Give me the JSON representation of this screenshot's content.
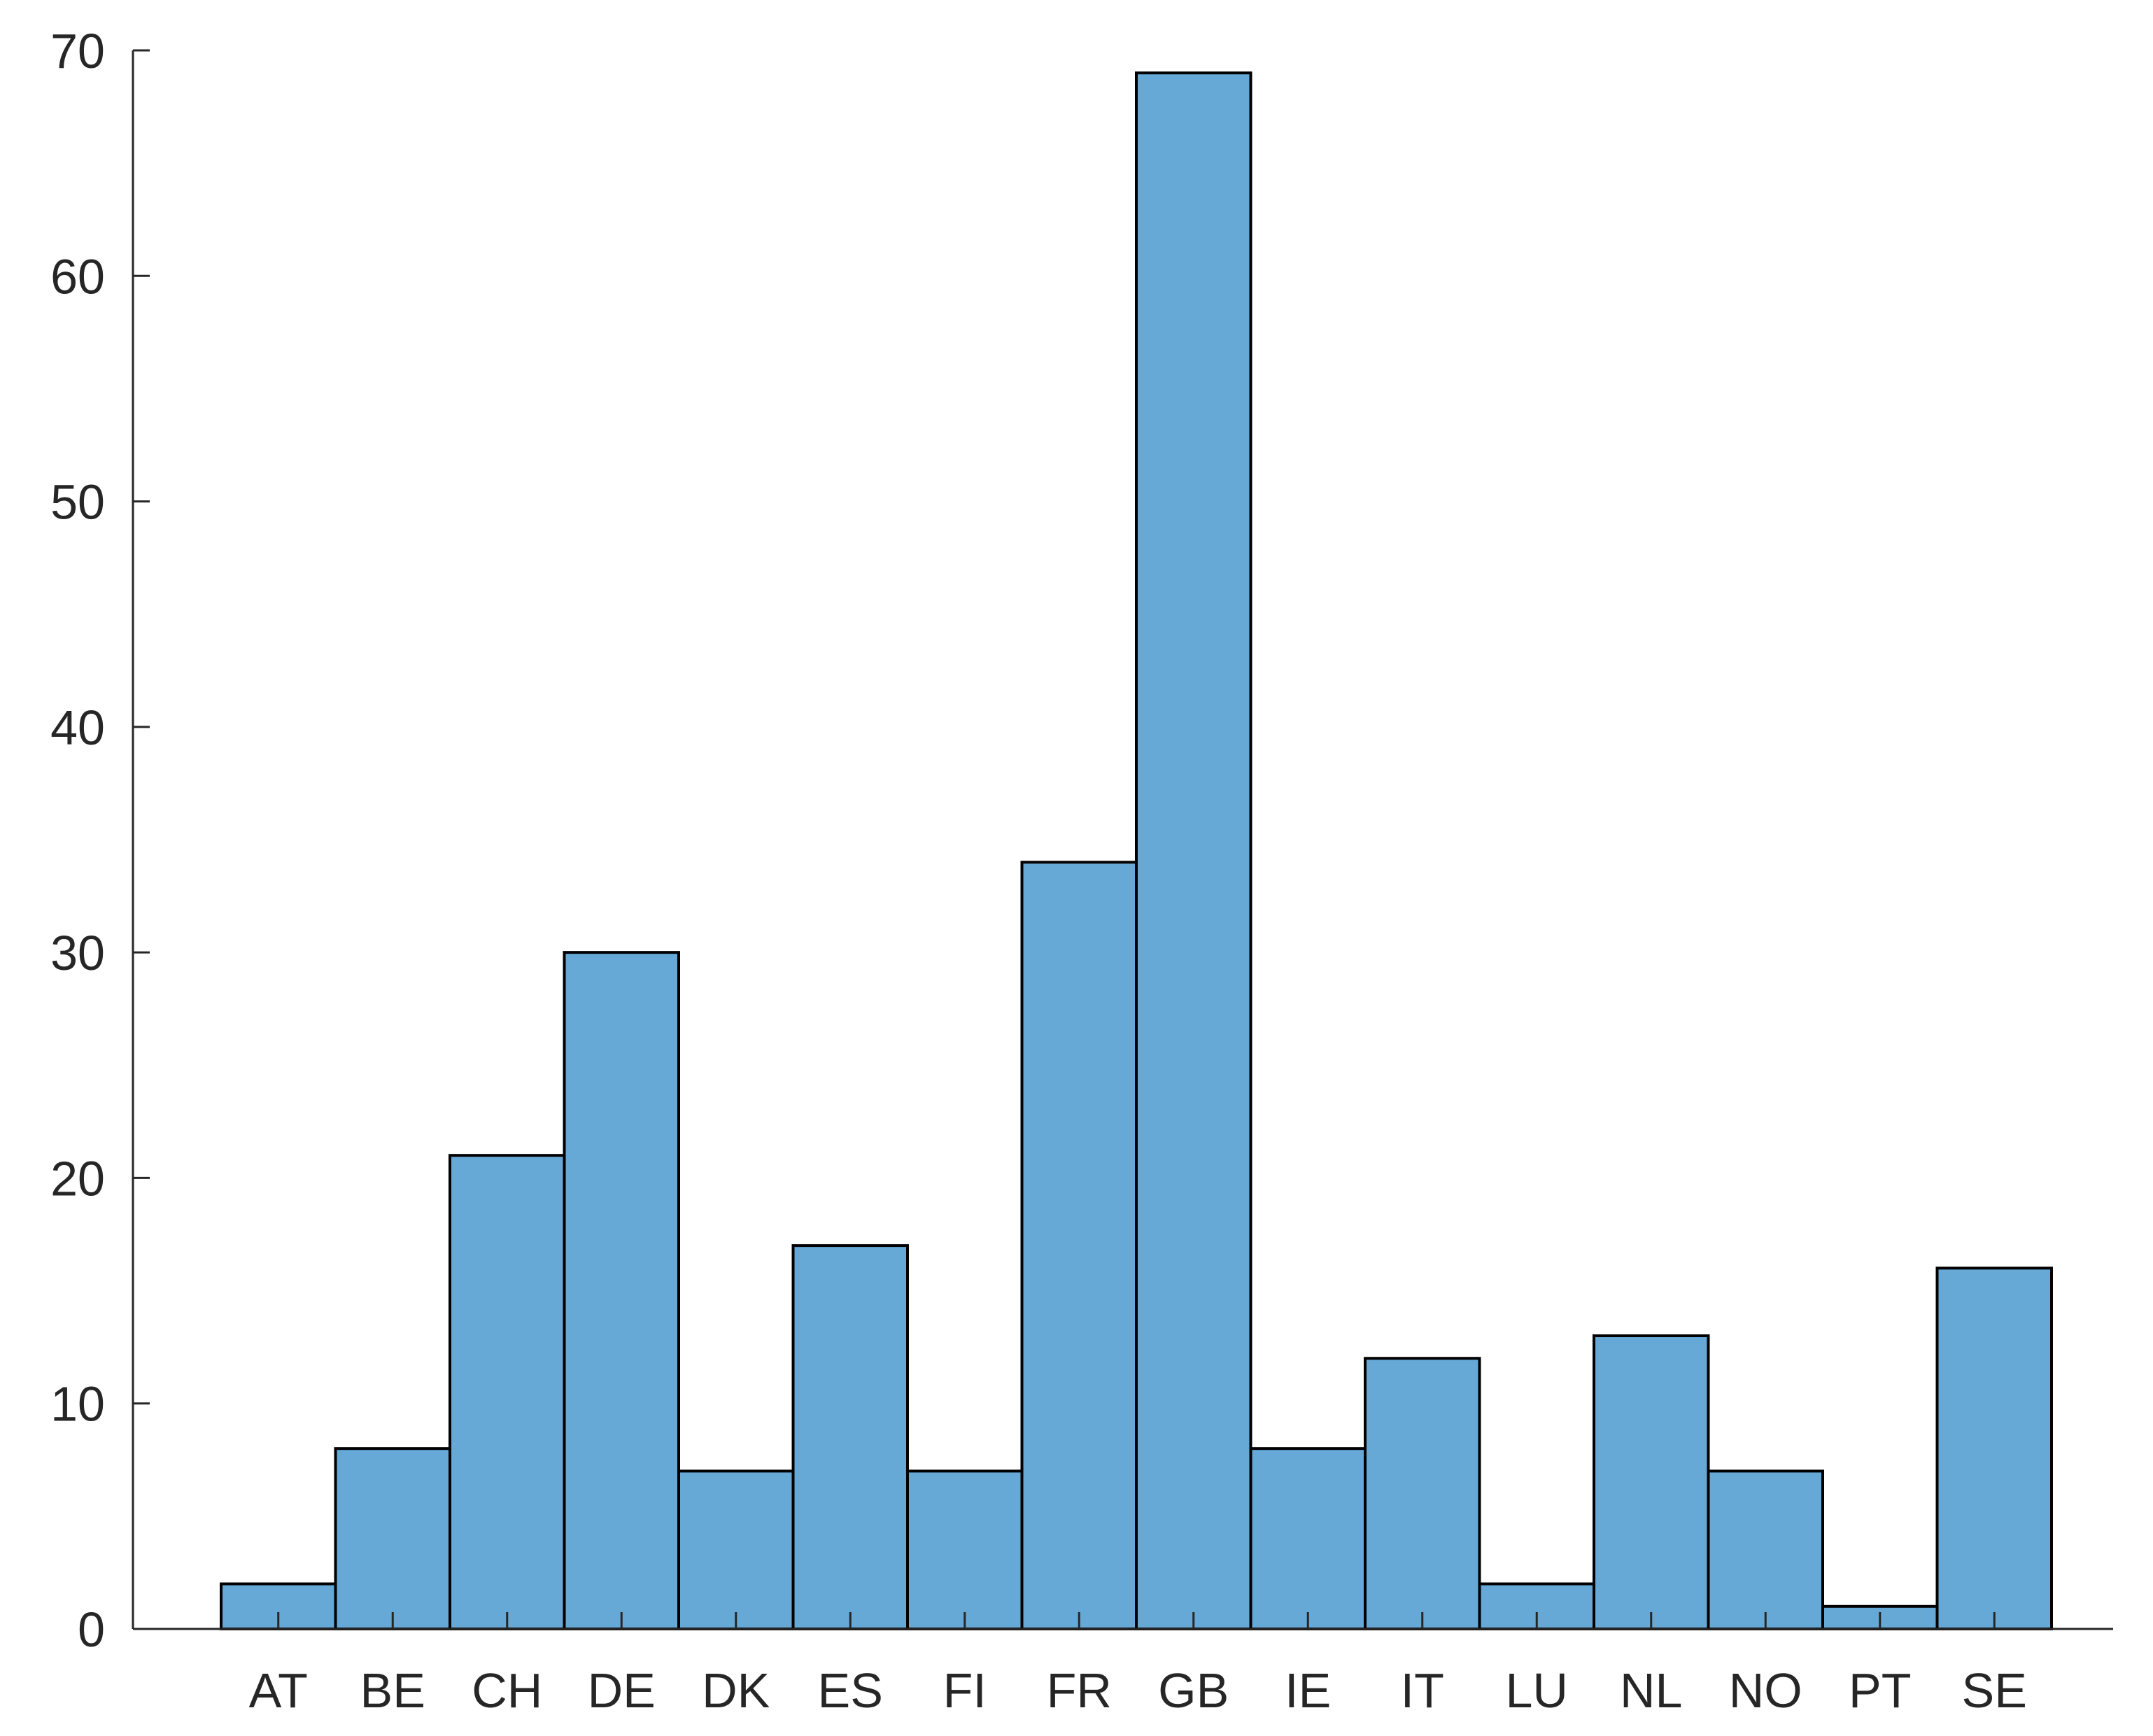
{
  "chart_data": {
    "type": "bar",
    "categories": [
      "AT",
      "BE",
      "CH",
      "DE",
      "DK",
      "ES",
      "FI",
      "FR",
      "GB",
      "IE",
      "IT",
      "LU",
      "NL",
      "NO",
      "PT",
      "SE"
    ],
    "values": [
      2,
      8,
      21,
      30,
      7,
      17,
      7,
      34,
      69,
      8,
      12,
      2,
      13,
      7,
      1,
      16
    ],
    "ylim": [
      0,
      70
    ],
    "yticks": [
      0,
      10,
      20,
      30,
      40,
      50,
      60,
      70
    ],
    "bar_color": "#66a8d6",
    "bar_edge_color": "#000000",
    "grid": false,
    "legend": "none"
  }
}
